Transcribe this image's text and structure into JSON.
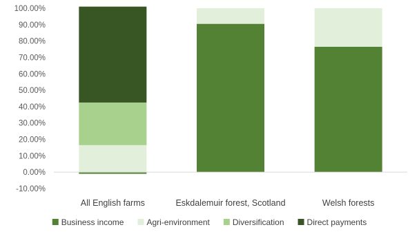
{
  "chart_data": {
    "type": "bar",
    "stacked": true,
    "categories": [
      "All English farms",
      "Eskdalemuir forest, Scotland",
      "Welsh forests"
    ],
    "series": [
      {
        "name": "Business income",
        "color": "#548235",
        "values": [
          -1,
          90.5,
          76.5
        ]
      },
      {
        "name": "Agri-environment",
        "color": "#E2EFDA",
        "values": [
          16.5,
          9.5,
          23.5
        ]
      },
      {
        "name": "Diversification",
        "color": "#A9D18E",
        "values": [
          26,
          0,
          0
        ]
      },
      {
        "name": "Direct payments",
        "color": "#375623",
        "values": [
          58.5,
          0,
          0
        ]
      }
    ],
    "ylim": [
      -10,
      100
    ],
    "ytick_step": 10,
    "ytick_labels": [
      "-10.00%",
      "0.00%",
      "10.00%",
      "20.00%",
      "30.00%",
      "40.00%",
      "50.00%",
      "60.00%",
      "70.00%",
      "80.00%",
      "90.00%",
      "100.00%"
    ],
    "title": "",
    "xlabel": "",
    "ylabel": "",
    "grid": false,
    "legend_position": "bottom"
  }
}
